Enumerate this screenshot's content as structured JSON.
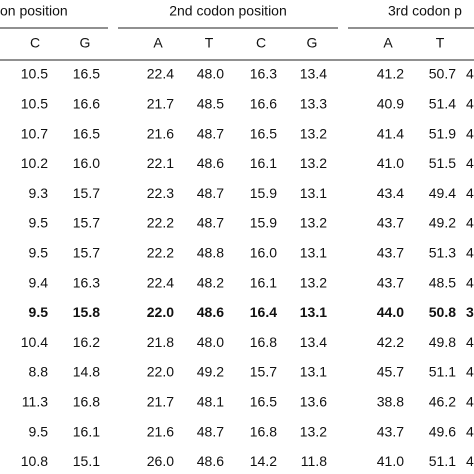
{
  "table": {
    "group_headers": [
      "on position",
      "2nd codon position",
      "3rd codon p"
    ],
    "column_headers": [
      "C",
      "G",
      "A",
      "T",
      "C",
      "G",
      "A",
      "T"
    ],
    "bold_row": 8,
    "rows": [
      [
        "10.5",
        "16.5",
        "22.4",
        "48.0",
        "16.3",
        "13.4",
        "41.2",
        "50.7",
        "4"
      ],
      [
        "10.5",
        "16.6",
        "21.7",
        "48.5",
        "16.6",
        "13.3",
        "40.9",
        "51.4",
        "4"
      ],
      [
        "10.7",
        "16.5",
        "21.6",
        "48.7",
        "16.5",
        "13.2",
        "41.4",
        "51.9",
        "4"
      ],
      [
        "10.2",
        "16.0",
        "22.1",
        "48.6",
        "16.1",
        "13.2",
        "41.0",
        "51.5",
        "4"
      ],
      [
        "9.3",
        "15.7",
        "22.3",
        "48.7",
        "15.9",
        "13.1",
        "43.4",
        "49.4",
        "4"
      ],
      [
        "9.5",
        "15.7",
        "22.2",
        "48.7",
        "15.9",
        "13.2",
        "43.7",
        "49.2",
        "4"
      ],
      [
        "9.5",
        "15.7",
        "22.2",
        "48.8",
        "16.0",
        "13.1",
        "43.7",
        "51.3",
        "4"
      ],
      [
        "9.4",
        "16.3",
        "22.4",
        "48.2",
        "16.1",
        "13.2",
        "43.7",
        "48.5",
        "4"
      ],
      [
        "9.5",
        "15.8",
        "22.0",
        "48.6",
        "16.4",
        "13.1",
        "44.0",
        "50.8",
        "3"
      ],
      [
        "10.4",
        "16.2",
        "21.8",
        "48.0",
        "16.8",
        "13.4",
        "42.2",
        "49.8",
        "4"
      ],
      [
        "8.8",
        "14.8",
        "22.0",
        "49.2",
        "15.7",
        "13.1",
        "45.7",
        "51.1",
        "4"
      ],
      [
        "11.3",
        "16.8",
        "21.7",
        "48.1",
        "16.5",
        "13.6",
        "38.8",
        "46.2",
        "4"
      ],
      [
        "9.5",
        "16.1",
        "21.6",
        "48.7",
        "16.8",
        "13.2",
        "43.7",
        "49.6",
        "4"
      ],
      [
        "10.8",
        "15.1",
        "26.0",
        "48.6",
        "14.2",
        "11.8",
        "41.0",
        "51.1",
        "4"
      ]
    ]
  }
}
